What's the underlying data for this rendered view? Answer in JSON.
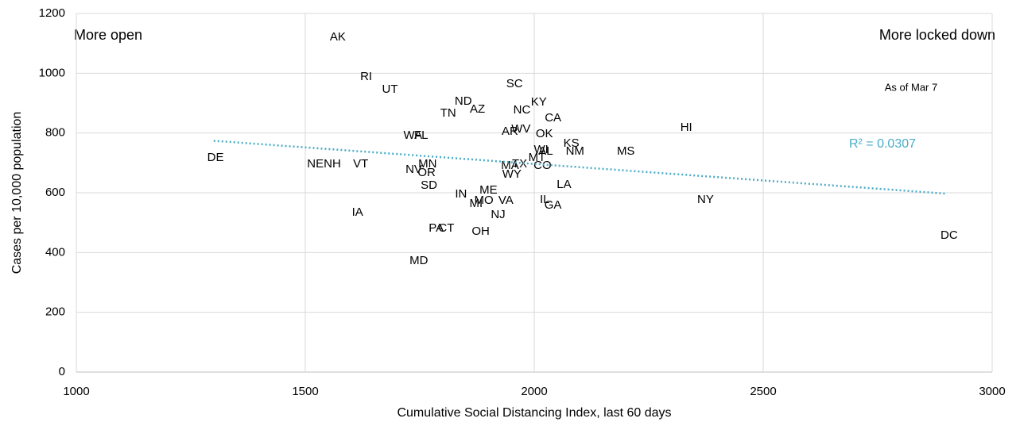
{
  "chart_data": {
    "type": "scatter",
    "xlabel": "Cumulative Social Distancing Index, last 60 days",
    "ylabel": "Cases per 10,000 population",
    "annotations": [
      "More open",
      "More locked down",
      "As of Mar 7"
    ],
    "xlim": [
      1000,
      3000
    ],
    "xticks": [
      1000,
      1500,
      2000,
      2500,
      3000
    ],
    "ylim": [
      0,
      1200
    ],
    "yticks": [
      0,
      200,
      400,
      600,
      800,
      1000,
      1200
    ],
    "grid": true,
    "labels": [
      "AK",
      "RI",
      "UT",
      "SC",
      "ND",
      "AZ",
      "TN",
      "NC",
      "KY",
      "CA",
      "HI",
      "WA",
      "FL",
      "AR",
      "WV",
      "OK",
      "DE",
      "KS",
      "NM",
      "MS",
      "WI",
      "AL",
      "MT",
      "CO",
      "NE",
      "NH",
      "VT",
      "MN",
      "NV",
      "OR",
      "MA",
      "TX",
      "WY",
      "SD",
      "LA",
      "IN",
      "ME",
      "MO",
      "VA",
      "MI",
      "IL",
      "GA",
      "NJ",
      "NY",
      "IA",
      "PA",
      "CT",
      "OH",
      "DC",
      "MD"
    ],
    "x": [
      1571,
      1633,
      1685,
      1957,
      1845,
      1876,
      1812,
      1973,
      2010,
      2041,
      2332,
      1735,
      1753,
      1947,
      1971,
      2022,
      1304,
      2081,
      2089,
      2200,
      2015,
      2025,
      2006,
      2018,
      1522,
      1559,
      1621,
      1767,
      1737,
      1765,
      1947,
      1968,
      1951,
      1770,
      2065,
      1840,
      1900,
      1890,
      1938,
      1873,
      2023,
      2041,
      1921,
      2374,
      1614,
      1786,
      1808,
      1883,
      2906,
      1748
    ],
    "values": [
      1120,
      987,
      945,
      964,
      905,
      879,
      865,
      876,
      903,
      849,
      818,
      791,
      791,
      804,
      812,
      796,
      717,
      765,
      738,
      738,
      743,
      738,
      717,
      690,
      696,
      696,
      696,
      696,
      677,
      666,
      690,
      696,
      661,
      624,
      626,
      595,
      608,
      573,
      573,
      563,
      576,
      557,
      526,
      576,
      534,
      480,
      480,
      470,
      457,
      372
    ],
    "trendline": {
      "x": [
        1300,
        2900
      ],
      "values": [
        774,
        597
      ],
      "color": "#4bacc6",
      "label": "R² = 0.0307"
    }
  }
}
